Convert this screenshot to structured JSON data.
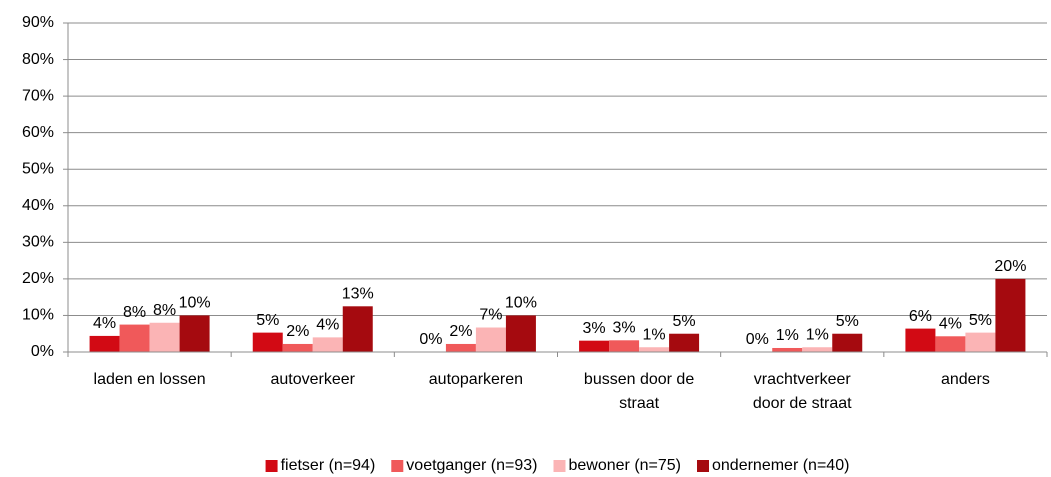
{
  "chart_data": {
    "type": "bar",
    "categories": [
      "laden en lossen",
      "autoverkeer",
      "autoparkeren",
      "bussen door de straat",
      "vrachtverkeer door de straat",
      "anders"
    ],
    "series": [
      {
        "name": "fietser (n=94)",
        "color": "#d20a14",
        "values": [
          4.4,
          5.3,
          0,
          3.1,
          0,
          6.4
        ],
        "value_labels": [
          "4%",
          "5%",
          "0%",
          "3%",
          "0%",
          "6%"
        ]
      },
      {
        "name": "voetganger (n=93)",
        "color": "#f0595a",
        "values": [
          7.5,
          2.2,
          2.2,
          3.2,
          1.1,
          4.3
        ],
        "value_labels": [
          "8%",
          "2%",
          "2%",
          "3%",
          "1%",
          "4%"
        ]
      },
      {
        "name": "bewoner (n=75)",
        "color": "#fbb4b5",
        "values": [
          8.0,
          4.0,
          6.7,
          1.3,
          1.3,
          5.3
        ],
        "value_labels": [
          "8%",
          "4%",
          "7%",
          "1%",
          "1%",
          "5%"
        ]
      },
      {
        "name": "ondernemer (n=40)",
        "color": "#a50a0f",
        "values": [
          10,
          12.5,
          10,
          5,
          5,
          20
        ],
        "value_labels": [
          "10%",
          "13%",
          "10%",
          "5%",
          "5%",
          "20%"
        ]
      }
    ],
    "ylim": [
      0,
      90
    ],
    "yticks": [
      {
        "value": 0,
        "label": "0%"
      },
      {
        "value": 10,
        "label": "10%"
      },
      {
        "value": 20,
        "label": "20%"
      },
      {
        "value": 30,
        "label": "30%"
      },
      {
        "value": 40,
        "label": "40%"
      },
      {
        "value": 50,
        "label": "50%"
      },
      {
        "value": 60,
        "label": "60%"
      },
      {
        "value": 70,
        "label": "70%"
      },
      {
        "value": 80,
        "label": "80%"
      },
      {
        "value": 90,
        "label": "90%"
      }
    ],
    "grid": true,
    "legend": "bottom"
  }
}
